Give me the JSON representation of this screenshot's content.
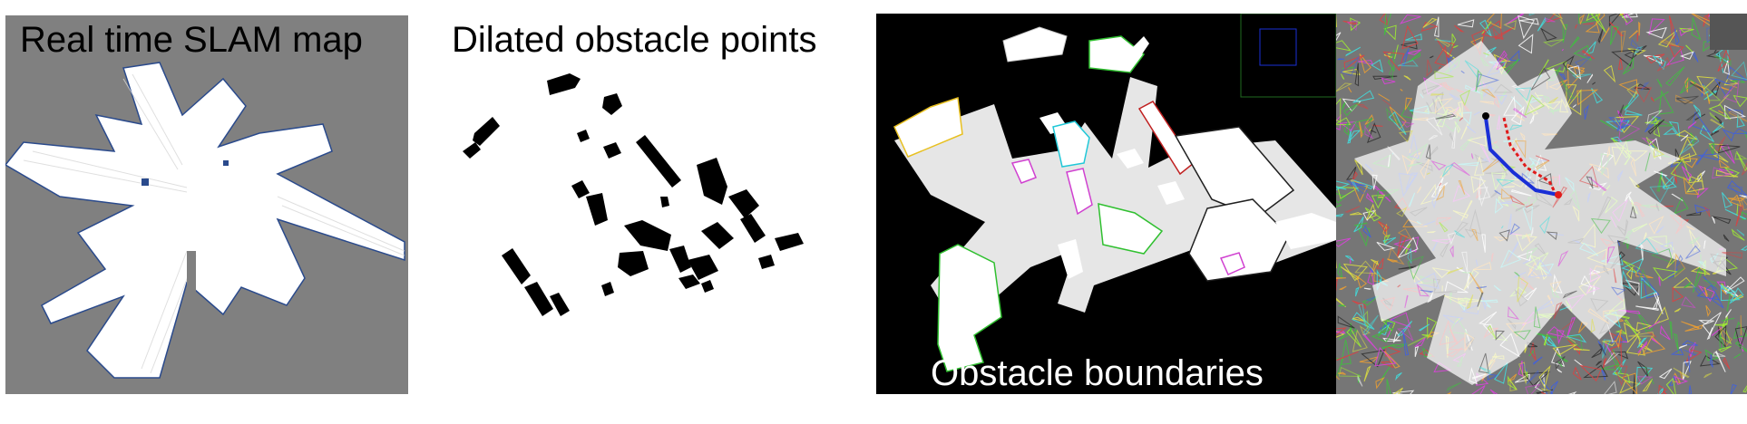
{
  "panels": [
    {
      "title": "Real time SLAM map",
      "bg": "#808080"
    },
    {
      "title": "Dilated obstacle points",
      "bg": "#ffffff"
    },
    {
      "title": "Obstacle boundaries",
      "bg": "#000000"
    },
    {
      "title": "",
      "bg": "#767676"
    }
  ],
  "colors": {
    "free_space": "#ffffff",
    "obstacle_dark": "#000000",
    "wall_edge": "#2a4a8c",
    "path": "#1a2fd6",
    "path_alt": "#e01b1b",
    "boundary_colors": [
      "#e8c020",
      "#20c8d8",
      "#d040d0",
      "#30c030",
      "#c02020",
      "#202020"
    ]
  }
}
